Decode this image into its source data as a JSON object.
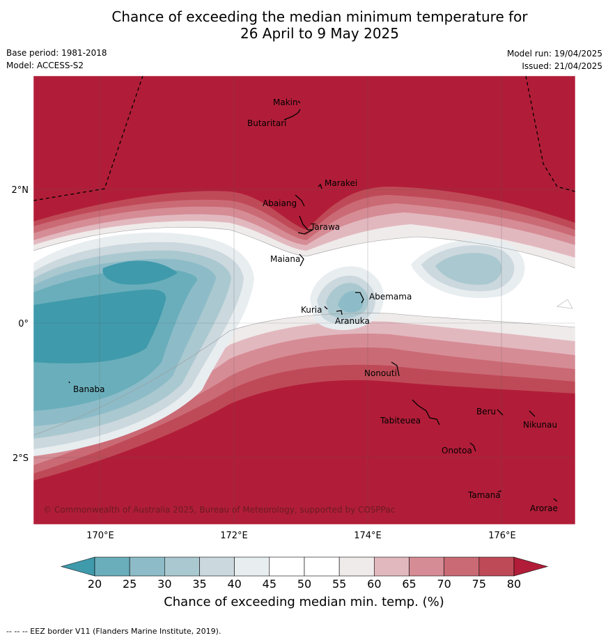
{
  "header": {
    "title_line1": "Chance of exceeding the median minimum temperature for",
    "title_line2": "26 April to 9 May 2025",
    "base_period": "Base period: 1981-2018",
    "model": "Model: ACCESS-S2",
    "model_run": "Model run: 19/04/2025",
    "issued": "Issued: 21/04/2025"
  },
  "map": {
    "lon_ticks": [
      "170°E",
      "172°E",
      "174°E",
      "176°E"
    ],
    "lat_ticks": [
      "2°N",
      "0°",
      "2°S"
    ],
    "copyright": "© Commonwealth of Australia 2025, Bureau of Meteorology, supported by COSPPac",
    "places": [
      {
        "name": "Makin"
      },
      {
        "name": "Butaritari"
      },
      {
        "name": "Marakei"
      },
      {
        "name": "Abaiang"
      },
      {
        "name": "Tarawa"
      },
      {
        "name": "Maiana"
      },
      {
        "name": "Abemama"
      },
      {
        "name": "Kuria"
      },
      {
        "name": "Aranuka"
      },
      {
        "name": "Banaba"
      },
      {
        "name": "Nonouti"
      },
      {
        "name": "Tabiteuea"
      },
      {
        "name": "Beru"
      },
      {
        "name": "Nikunau"
      },
      {
        "name": "Onotoa"
      },
      {
        "name": "Tamana"
      },
      {
        "name": "Arorae"
      }
    ]
  },
  "colorbar": {
    "ticks": [
      "20",
      "25",
      "30",
      "35",
      "40",
      "45",
      "50",
      "55",
      "60",
      "65",
      "70",
      "75",
      "80"
    ],
    "colors": [
      "#3f9aab",
      "#6aaebb",
      "#8dbcc8",
      "#aac8cf",
      "#cbd8de",
      "#e8edf0",
      "#ffffff",
      "#ffffff",
      "#efebea",
      "#e2b8bf",
      "#d68c95",
      "#ca6a75",
      "#bf4a57",
      "#b11d38"
    ],
    "title": "Chance of exceeding median min. temp. (%)"
  },
  "footer": "--  --  -- EEZ border V11 (Flanders Marine Institute, 2019)."
}
